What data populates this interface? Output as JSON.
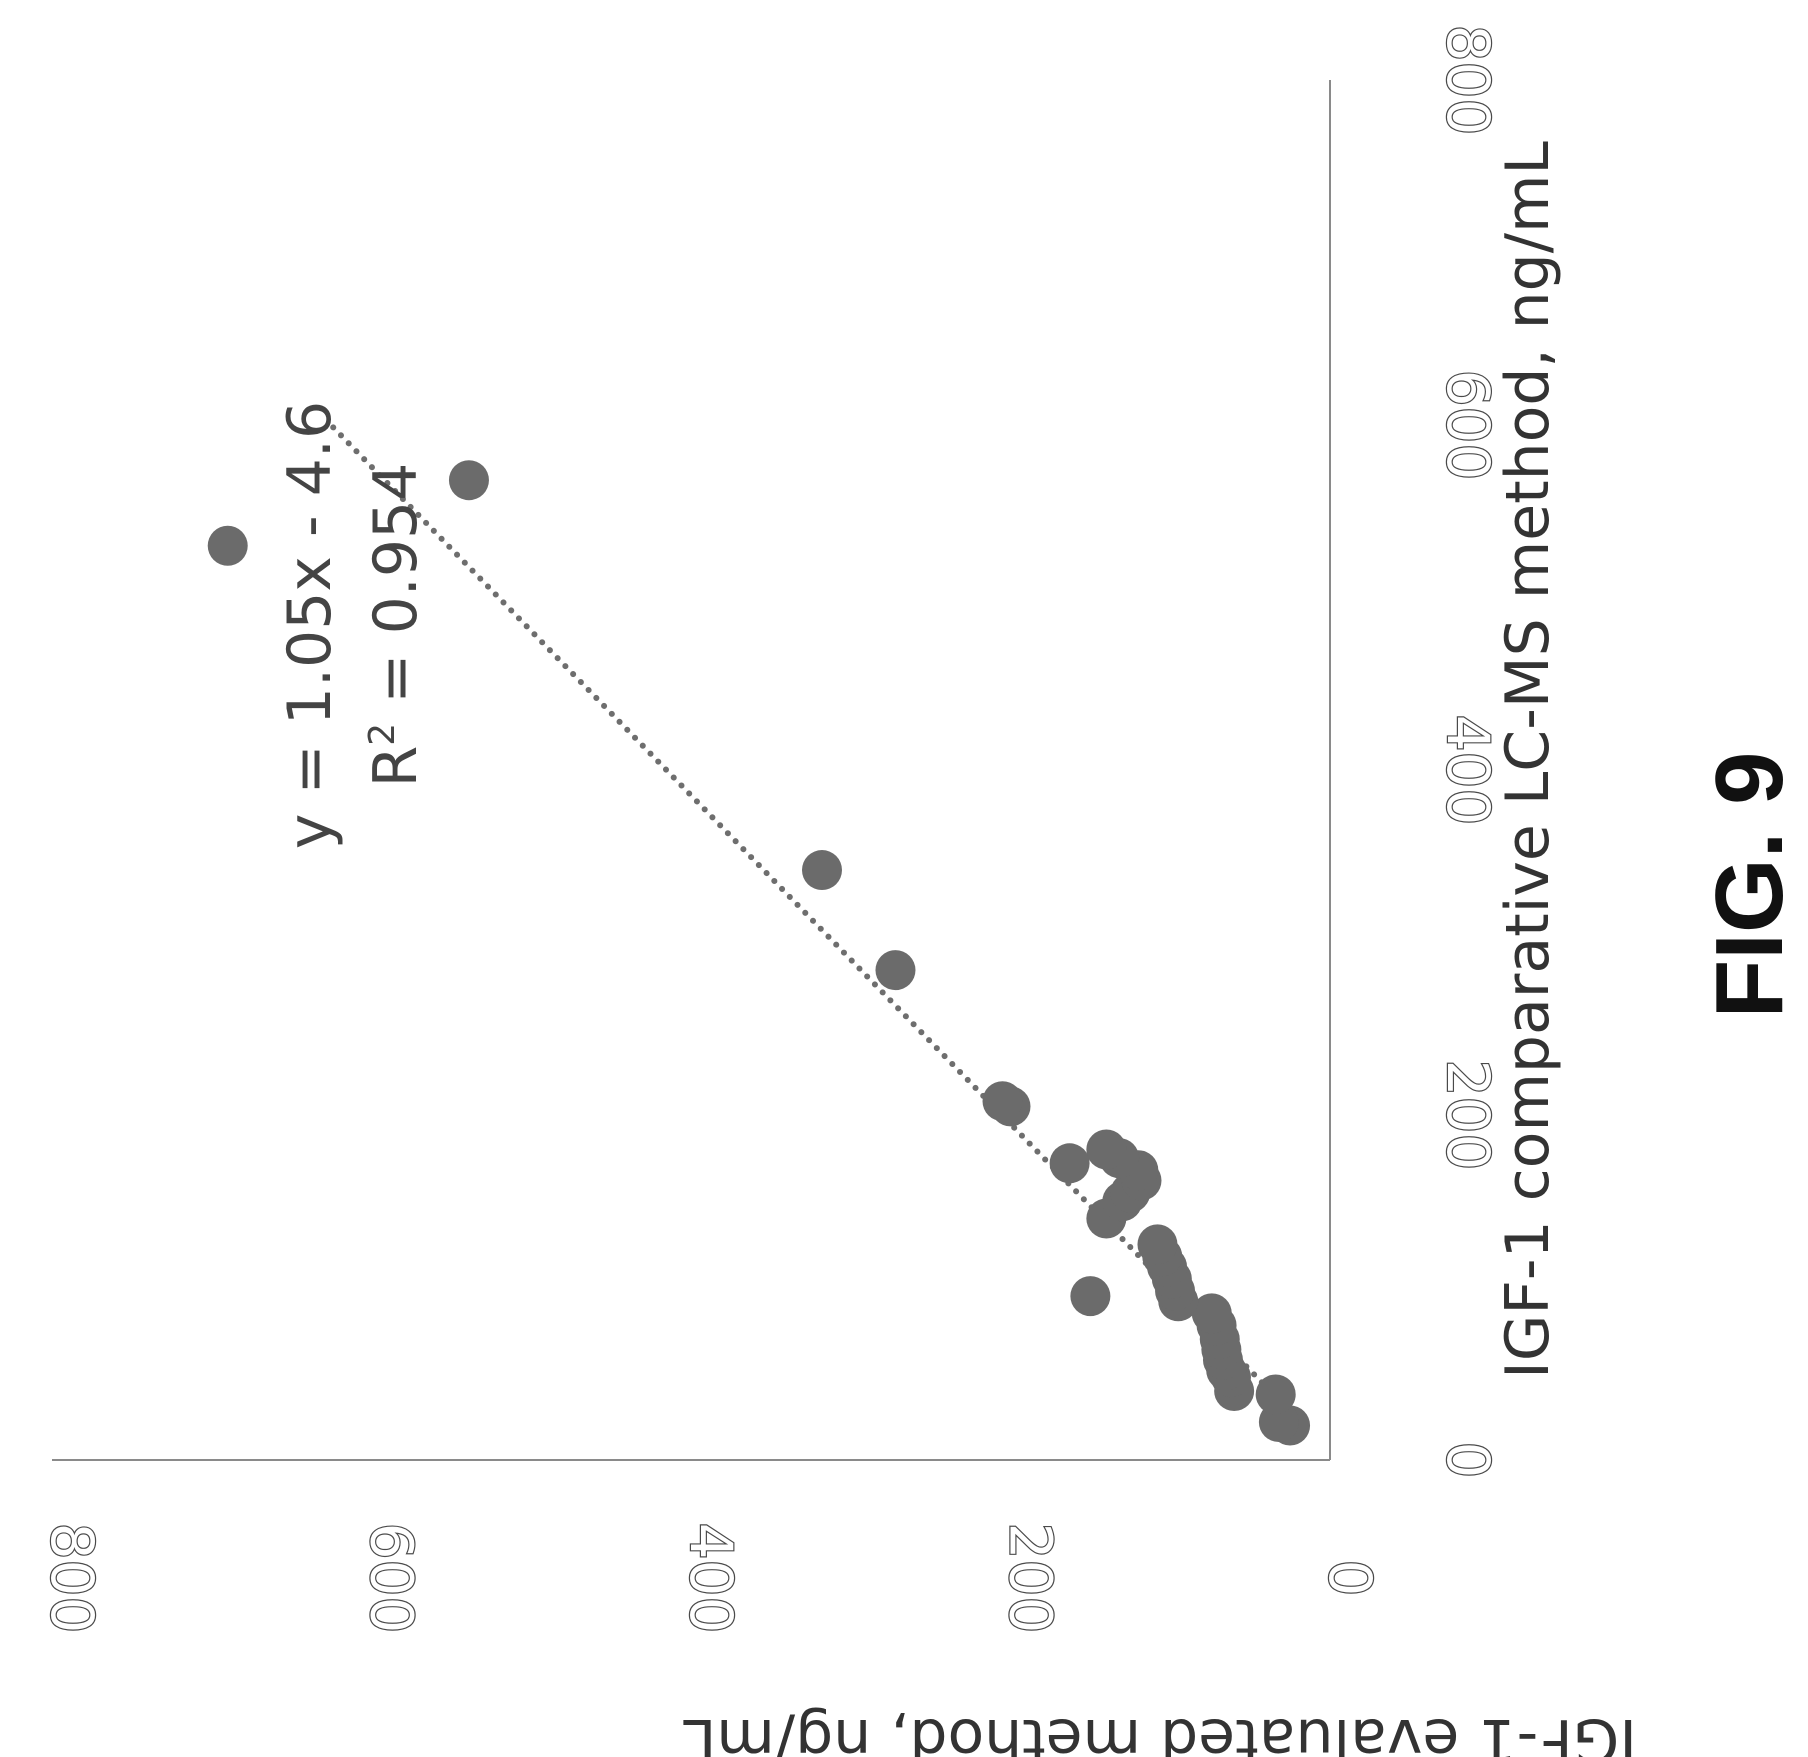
{
  "chart_data": {
    "type": "scatter",
    "title": "",
    "xlabel": "IGF-1 comparative LC-MS method, ng/mL",
    "ylabel": "IGF-1 evaluated method, ng/mL",
    "xlim": [
      0,
      800
    ],
    "ylim": [
      0,
      800
    ],
    "xticks": [
      "0",
      "200",
      "400",
      "600",
      "800"
    ],
    "yticks": [
      "0",
      "200",
      "400",
      "600",
      "800"
    ],
    "grid": false,
    "trendline": {
      "style": "dotted",
      "equation": "y = 1.05x - 4.6",
      "r_squared_prefix": "R",
      "r_squared_superscript": "2",
      "r_squared_value": " = 0.954",
      "slope": 1.05,
      "intercept": -4.6,
      "x_range": [
        45,
        600
      ]
    },
    "points": [
      {
        "x": 20,
        "y": 25
      },
      {
        "x": 22,
        "y": 32
      },
      {
        "x": 38,
        "y": 34
      },
      {
        "x": 40,
        "y": 60
      },
      {
        "x": 48,
        "y": 62
      },
      {
        "x": 52,
        "y": 65
      },
      {
        "x": 58,
        "y": 67
      },
      {
        "x": 64,
        "y": 68
      },
      {
        "x": 70,
        "y": 69
      },
      {
        "x": 78,
        "y": 71
      },
      {
        "x": 85,
        "y": 74
      },
      {
        "x": 92,
        "y": 95
      },
      {
        "x": 98,
        "y": 97
      },
      {
        "x": 105,
        "y": 99
      },
      {
        "x": 112,
        "y": 102
      },
      {
        "x": 118,
        "y": 105
      },
      {
        "x": 125,
        "y": 108
      },
      {
        "x": 95,
        "y": 150
      },
      {
        "x": 140,
        "y": 140
      },
      {
        "x": 150,
        "y": 130
      },
      {
        "x": 155,
        "y": 125
      },
      {
        "x": 162,
        "y": 118
      },
      {
        "x": 168,
        "y": 120
      },
      {
        "x": 172,
        "y": 163
      },
      {
        "x": 175,
        "y": 132
      },
      {
        "x": 180,
        "y": 140
      },
      {
        "x": 205,
        "y": 200
      },
      {
        "x": 208,
        "y": 205
      },
      {
        "x": 284,
        "y": 272
      },
      {
        "x": 342,
        "y": 318
      },
      {
        "x": 568,
        "y": 539
      },
      {
        "x": 530,
        "y": 690
      }
    ],
    "figure_label": "FIG. 9"
  }
}
